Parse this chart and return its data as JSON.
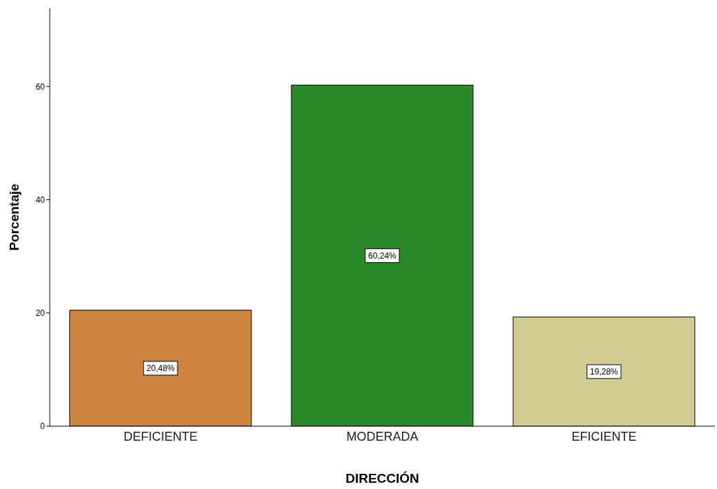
{
  "chart_data": {
    "type": "bar",
    "xlabel": "DIRECCIÓN",
    "ylabel": "Porcentaje",
    "categories": [
      "DEFICIENTE",
      "MODERADA",
      "EFICIENTE"
    ],
    "values": [
      20.48,
      60.24,
      19.28
    ],
    "colors": [
      "#cd853f",
      "#2a8a2a",
      "#d2cb93"
    ],
    "value_labels": [
      "20,48%",
      "60,24%",
      "19,28%"
    ],
    "ylim": [
      0,
      73.8
    ],
    "yticks": [
      0,
      20,
      40,
      60
    ],
    "grid": false,
    "legend": false
  }
}
